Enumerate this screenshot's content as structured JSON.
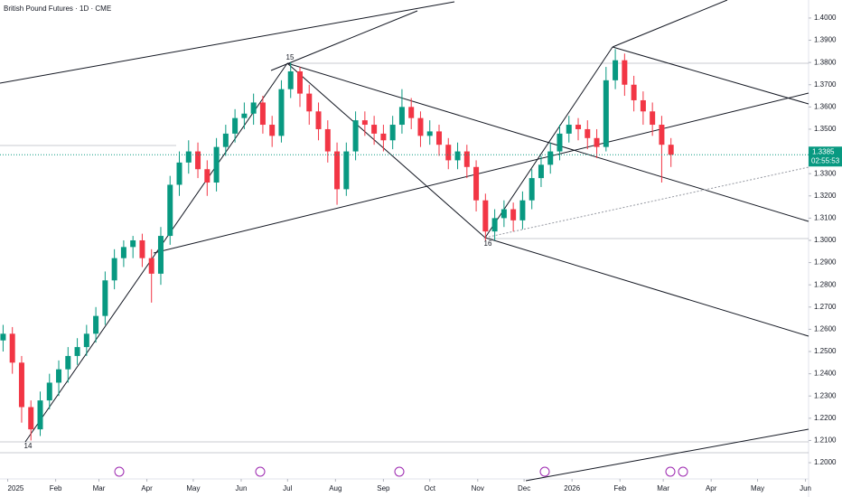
{
  "chart_data": {
    "type": "candlestick",
    "title": "British Pound Futures · 1D · CME",
    "grid": false,
    "up_color": "#089981",
    "down_color": "#f23645",
    "xlim": [
      -5,
      518
    ],
    "ylim": [
      1.1927,
      1.4081
    ],
    "xticks": [
      {
        "value": 0,
        "label": "2025"
      },
      {
        "value": 31,
        "label": "Feb"
      },
      {
        "value": 59,
        "label": "Mar"
      },
      {
        "value": 90,
        "label": "Apr"
      },
      {
        "value": 120,
        "label": "May"
      },
      {
        "value": 151,
        "label": "Jun"
      },
      {
        "value": 181,
        "label": "Jul"
      },
      {
        "value": 212,
        "label": "Aug"
      },
      {
        "value": 243,
        "label": "Sep"
      },
      {
        "value": 273,
        "label": "Oct"
      },
      {
        "value": 304,
        "label": "Nov"
      },
      {
        "value": 334,
        "label": "Dec"
      },
      {
        "value": 365,
        "label": "2026"
      },
      {
        "value": 396,
        "label": "Feb"
      },
      {
        "value": 424,
        "label": "Mar"
      },
      {
        "value": 455,
        "label": "Apr"
      },
      {
        "value": 485,
        "label": "May"
      },
      {
        "value": 516,
        "label": "Jun"
      }
    ],
    "yticks": [
      {
        "value": 1.2,
        "label": "1.2000"
      },
      {
        "value": 1.21,
        "label": "1.2100"
      },
      {
        "value": 1.22,
        "label": "1.2200"
      },
      {
        "value": 1.23,
        "label": "1.2300"
      },
      {
        "value": 1.24,
        "label": "1.2400"
      },
      {
        "value": 1.25,
        "label": "1.2500"
      },
      {
        "value": 1.26,
        "label": "1.2600"
      },
      {
        "value": 1.27,
        "label": "1.2700"
      },
      {
        "value": 1.28,
        "label": "1.2800"
      },
      {
        "value": 1.29,
        "label": "1.2900"
      },
      {
        "value": 1.3,
        "label": "1.3000"
      },
      {
        "value": 1.31,
        "label": "1.3100"
      },
      {
        "value": 1.32,
        "label": "1.3200"
      },
      {
        "value": 1.33,
        "label": "1.3300"
      },
      {
        "value": 1.34,
        "label": "1.3400"
      },
      {
        "value": 1.35,
        "label": "1.3500"
      },
      {
        "value": 1.36,
        "label": "1.3600"
      },
      {
        "value": 1.37,
        "label": "1.3700"
      },
      {
        "value": 1.38,
        "label": "1.3800"
      },
      {
        "value": 1.39,
        "label": "1.3900"
      },
      {
        "value": 1.4,
        "label": "1.4000"
      }
    ],
    "last_price": 1.3385,
    "countdown": "02:55:53",
    "annotations": [
      "14",
      "15",
      "16"
    ],
    "x": [
      -3,
      3,
      9,
      15,
      21,
      27,
      33,
      39,
      45,
      51,
      57,
      63,
      69,
      75,
      81,
      87,
      93,
      99,
      105,
      111,
      117,
      123,
      129,
      135,
      141,
      147,
      153,
      159,
      165,
      171,
      177,
      183,
      189,
      195,
      201,
      207,
      213,
      219,
      225,
      231,
      237,
      243,
      249,
      255,
      261,
      267,
      273,
      279,
      285,
      291,
      297,
      303,
      309,
      315,
      321,
      327,
      333,
      339,
      345,
      351,
      357,
      363,
      369,
      375,
      381,
      387,
      393,
      399,
      405,
      411,
      417,
      423,
      429
    ],
    "open": [
      1.255,
      1.258,
      1.245,
      1.225,
      1.215,
      1.228,
      1.236,
      1.242,
      1.248,
      1.252,
      1.258,
      1.266,
      1.282,
      1.292,
      1.297,
      1.3,
      1.292,
      1.285,
      1.302,
      1.325,
      1.335,
      1.34,
      1.332,
      1.326,
      1.342,
      1.348,
      1.355,
      1.357,
      1.362,
      1.352,
      1.347,
      1.368,
      1.376,
      1.366,
      1.358,
      1.35,
      1.34,
      1.323,
      1.34,
      1.354,
      1.352,
      1.348,
      1.345,
      1.352,
      1.36,
      1.355,
      1.347,
      1.349,
      1.343,
      1.336,
      1.34,
      1.333,
      1.318,
      1.304,
      1.31,
      1.314,
      1.309,
      1.318,
      1.328,
      1.334,
      1.34,
      1.348,
      1.352,
      1.35,
      1.346,
      1.342,
      1.372,
      1.381,
      1.37,
      1.363,
      1.358,
      1.352,
      1.343
    ],
    "high": [
      1.262,
      1.261,
      1.248,
      1.228,
      1.232,
      1.24,
      1.246,
      1.252,
      1.256,
      1.262,
      1.27,
      1.286,
      1.296,
      1.3,
      1.302,
      1.303,
      1.296,
      1.306,
      1.329,
      1.34,
      1.345,
      1.344,
      1.336,
      1.346,
      1.352,
      1.359,
      1.362,
      1.366,
      1.365,
      1.356,
      1.372,
      1.38,
      1.378,
      1.37,
      1.362,
      1.354,
      1.344,
      1.344,
      1.358,
      1.358,
      1.356,
      1.352,
      1.356,
      1.368,
      1.364,
      1.358,
      1.354,
      1.352,
      1.346,
      1.344,
      1.343,
      1.336,
      1.321,
      1.314,
      1.318,
      1.317,
      1.322,
      1.332,
      1.338,
      1.344,
      1.352,
      1.356,
      1.355,
      1.354,
      1.35,
      1.378,
      1.386,
      1.384,
      1.374,
      1.367,
      1.362,
      1.356,
      1.346
    ],
    "low": [
      1.25,
      1.24,
      1.218,
      1.21,
      1.212,
      1.224,
      1.23,
      1.236,
      1.244,
      1.248,
      1.254,
      1.262,
      1.278,
      1.288,
      1.292,
      1.288,
      1.272,
      1.28,
      1.298,
      1.32,
      1.33,
      1.328,
      1.32,
      1.322,
      1.338,
      1.344,
      1.35,
      1.352,
      1.348,
      1.342,
      1.344,
      1.364,
      1.36,
      1.352,
      1.345,
      1.335,
      1.316,
      1.32,
      1.336,
      1.347,
      1.343,
      1.34,
      1.341,
      1.348,
      1.35,
      1.342,
      1.343,
      1.338,
      1.332,
      1.332,
      1.328,
      1.313,
      1.3,
      1.3,
      1.306,
      1.304,
      1.305,
      1.314,
      1.324,
      1.33,
      1.336,
      1.344,
      1.345,
      1.341,
      1.337,
      1.34,
      1.368,
      1.365,
      1.358,
      1.352,
      1.347,
      1.326,
      1.333
    ],
    "close": [
      1.258,
      1.245,
      1.225,
      1.215,
      1.228,
      1.236,
      1.242,
      1.248,
      1.252,
      1.258,
      1.266,
      1.282,
      1.292,
      1.297,
      1.3,
      1.292,
      1.285,
      1.302,
      1.325,
      1.335,
      1.34,
      1.332,
      1.326,
      1.342,
      1.348,
      1.355,
      1.357,
      1.362,
      1.352,
      1.347,
      1.368,
      1.376,
      1.366,
      1.358,
      1.35,
      1.34,
      1.323,
      1.34,
      1.354,
      1.352,
      1.348,
      1.345,
      1.352,
      1.36,
      1.355,
      1.347,
      1.349,
      1.343,
      1.336,
      1.34,
      1.333,
      1.318,
      1.304,
      1.31,
      1.314,
      1.309,
      1.318,
      1.328,
      1.334,
      1.34,
      1.348,
      1.352,
      1.35,
      1.346,
      1.342,
      1.372,
      1.381,
      1.37,
      1.363,
      1.358,
      1.352,
      1.343,
      1.3385
    ]
  }
}
